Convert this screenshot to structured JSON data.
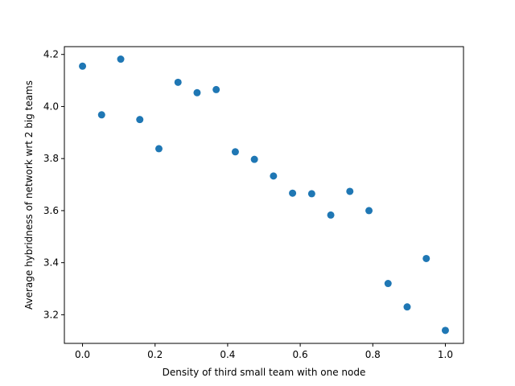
{
  "chart_data": {
    "type": "scatter",
    "title": "",
    "xlabel": "Density of third small team with one node",
    "ylabel": "Average hybridness of network wrt 2 big teams",
    "xlim": [
      -0.05,
      1.05
    ],
    "ylim": [
      3.09,
      4.23
    ],
    "xticks": [
      0.0,
      0.2,
      0.4,
      0.6,
      0.8,
      1.0
    ],
    "xtick_labels": [
      "0.0",
      "0.2",
      "0.4",
      "0.6",
      "0.8",
      "1.0"
    ],
    "yticks": [
      3.2,
      3.4,
      3.6,
      3.8,
      4.0,
      4.2
    ],
    "ytick_labels": [
      "3.2",
      "3.4",
      "3.6",
      "3.8",
      "4.0",
      "4.2"
    ],
    "grid": false,
    "marker_color": "#1f77b4",
    "series": [
      {
        "x": [
          0.0,
          0.0526,
          0.1053,
          0.1579,
          0.2105,
          0.2632,
          0.3158,
          0.3684,
          0.4211,
          0.4737,
          0.5263,
          0.5789,
          0.6316,
          0.6842,
          0.7368,
          0.7895,
          0.8421,
          0.8947,
          0.9474,
          1.0
        ],
        "y": [
          4.155,
          3.968,
          4.182,
          3.95,
          3.838,
          4.093,
          4.053,
          4.065,
          3.826,
          3.797,
          3.733,
          3.667,
          3.665,
          3.583,
          3.674,
          3.6,
          3.32,
          3.23,
          3.416,
          3.14
        ]
      }
    ]
  }
}
